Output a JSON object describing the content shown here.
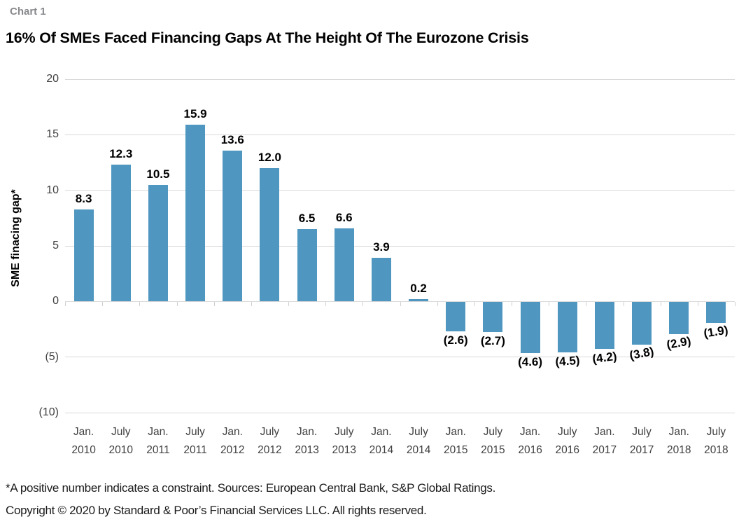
{
  "chart_label": "Chart 1",
  "chart_data": {
    "type": "bar",
    "title": "16% Of SMEs Faced Financing Gaps At The Height Of The Eurozone Crisis",
    "xlabel": "",
    "ylabel": "SME finacing gap*",
    "ylim": [
      -10,
      20
    ],
    "grid": true,
    "legend": false,
    "ytick_values": [
      20,
      15,
      10,
      5,
      0,
      -5,
      -10
    ],
    "ytick_labels": [
      "20",
      "15",
      "10",
      "5",
      "0",
      "(5)",
      "(10)"
    ],
    "categories": [
      [
        "Jan.",
        "2010"
      ],
      [
        "July",
        "2010"
      ],
      [
        "Jan.",
        "2011"
      ],
      [
        "July",
        "2011"
      ],
      [
        "Jan.",
        "2012"
      ],
      [
        "July",
        "2012"
      ],
      [
        "Jan.",
        "2013"
      ],
      [
        "July",
        "2013"
      ],
      [
        "Jan.",
        "2014"
      ],
      [
        "July",
        "2014"
      ],
      [
        "Jan.",
        "2015"
      ],
      [
        "July",
        "2015"
      ],
      [
        "Jan.",
        "2016"
      ],
      [
        "July",
        "2016"
      ],
      [
        "Jan.",
        "2017"
      ],
      [
        "July",
        "2017"
      ],
      [
        "Jan.",
        "2018"
      ],
      [
        "July",
        "2018"
      ]
    ],
    "values": [
      8.3,
      12.3,
      10.5,
      15.9,
      13.6,
      12.0,
      6.5,
      6.6,
      3.9,
      0.2,
      -2.6,
      -2.7,
      -4.6,
      -4.5,
      -4.2,
      -3.8,
      -2.9,
      -1.9
    ],
    "bar_labels": [
      "8.3",
      "12.3",
      "10.5",
      "15.9",
      "13.6",
      "12.0",
      "6.5",
      "6.6",
      "3.9",
      "0.2",
      "(2.6)",
      "(2.7)",
      "(4.6)",
      "(4.5)",
      "(4.2)",
      "(3.8)",
      "(2.9)",
      "(1.9)"
    ],
    "label_rotations_deg": [
      0,
      0,
      0,
      0,
      0,
      0,
      0,
      0,
      0,
      0,
      0,
      0,
      0,
      -4,
      -7,
      -11,
      -10,
      -9
    ],
    "bar_color": "#4f97c0",
    "gridline_color": "#d9d9d9"
  },
  "footnotes": {
    "line1": "*A positive number indicates a constraint. Sources: European Central Bank, S&P Global Ratings.",
    "line2": "Copyright © 2020 by Standard & Poor’s Financial Services LLC. All rights reserved."
  }
}
